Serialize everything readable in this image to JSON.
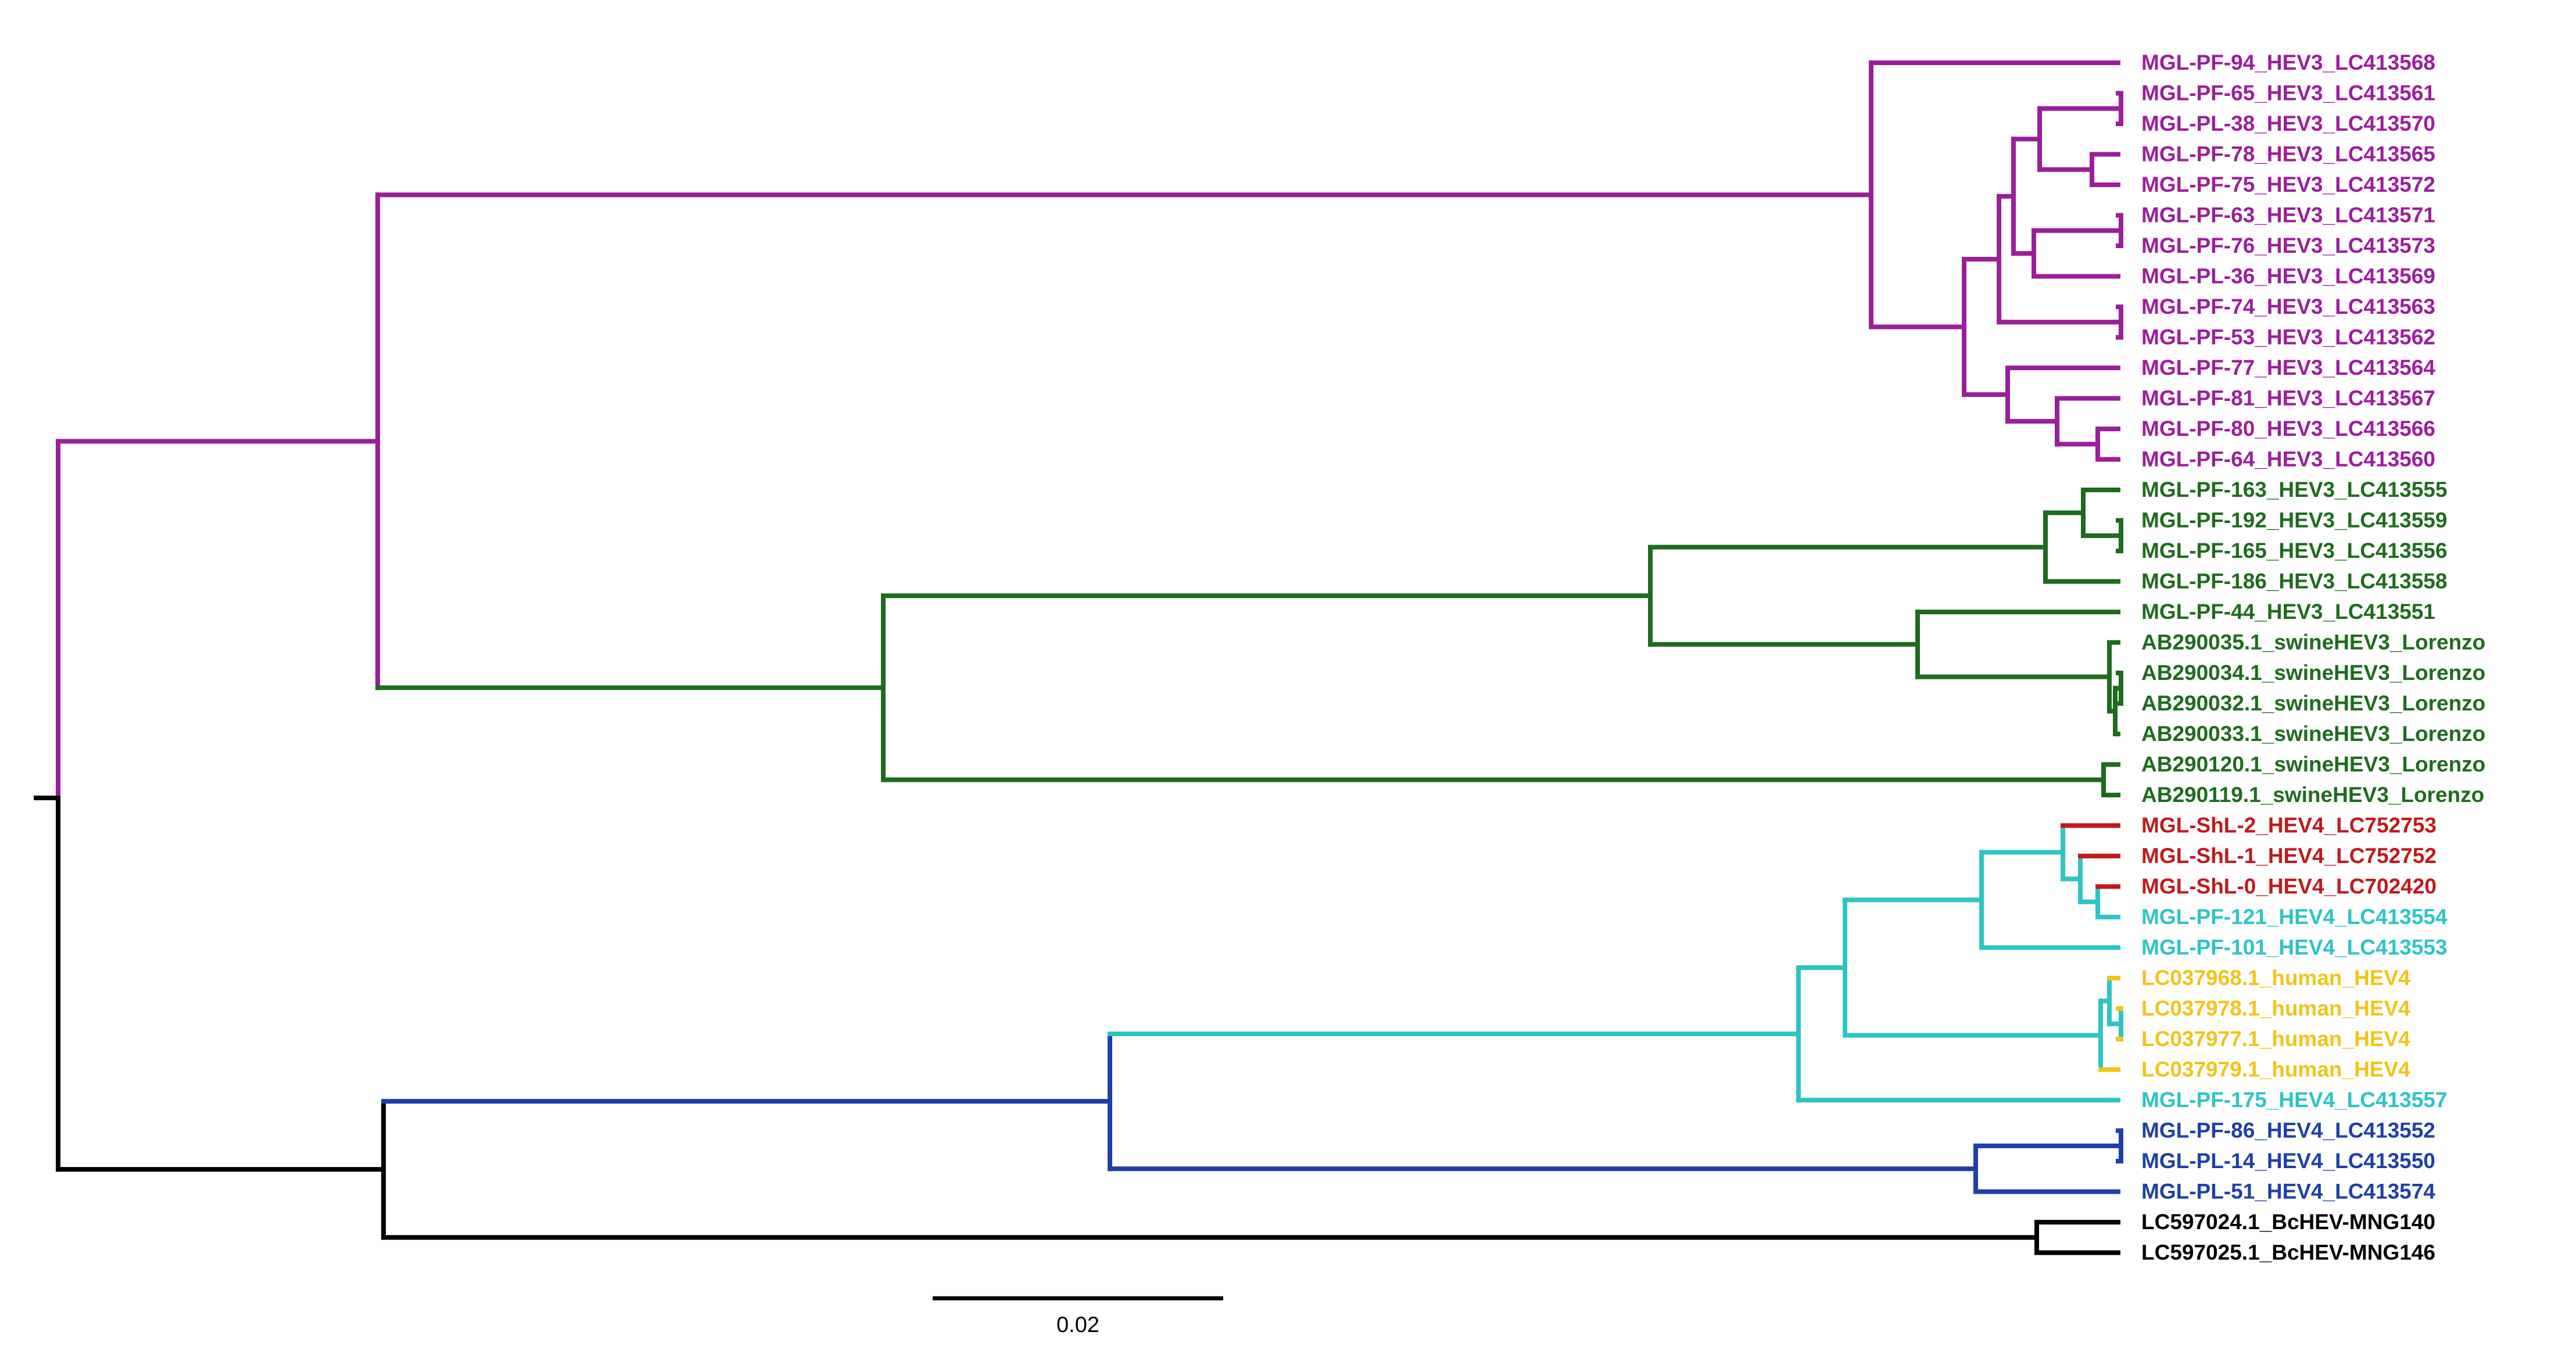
{
  "colors": {
    "hev3_mongolia": "#9b1e9b",
    "hev3_swine": "#1e6b1e",
    "hev4_shl": "#c0191c",
    "hev4_pf": "#2ec4c4",
    "hev4_human": "#f2c419",
    "hev4_blue": "#1f3fa8",
    "bchev": "#000000"
  },
  "tree": {
    "scale_bar": {
      "label": "0.02",
      "length": 0.02
    },
    "leaves": [
      {
        "label": "MGL-PF-94_HEV3_LC413568",
        "color": "#9b1e9b"
      },
      {
        "label": "MGL-PF-65_HEV3_LC413561",
        "color": "#9b1e9b"
      },
      {
        "label": "MGL-PL-38_HEV3_LC413570",
        "color": "#9b1e9b"
      },
      {
        "label": "MGL-PF-78_HEV3_LC413565",
        "color": "#9b1e9b"
      },
      {
        "label": "MGL-PF-75_HEV3_LC413572",
        "color": "#9b1e9b"
      },
      {
        "label": "MGL-PF-63_HEV3_LC413571",
        "color": "#9b1e9b"
      },
      {
        "label": "MGL-PF-76_HEV3_LC413573",
        "color": "#9b1e9b"
      },
      {
        "label": "MGL-PL-36_HEV3_LC413569",
        "color": "#9b1e9b"
      },
      {
        "label": "MGL-PF-74_HEV3_LC413563",
        "color": "#9b1e9b"
      },
      {
        "label": "MGL-PF-53_HEV3_LC413562",
        "color": "#9b1e9b"
      },
      {
        "label": "MGL-PF-77_HEV3_LC413564",
        "color": "#9b1e9b"
      },
      {
        "label": "MGL-PF-81_HEV3_LC413567",
        "color": "#9b1e9b"
      },
      {
        "label": "MGL-PF-80_HEV3_LC413566",
        "color": "#9b1e9b"
      },
      {
        "label": "MGL-PF-64_HEV3_LC413560",
        "color": "#9b1e9b"
      },
      {
        "label": "MGL-PF-163_HEV3_LC413555",
        "color": "#1e6b1e"
      },
      {
        "label": "MGL-PF-192_HEV3_LC413559",
        "color": "#1e6b1e"
      },
      {
        "label": "MGL-PF-165_HEV3_LC413556",
        "color": "#1e6b1e"
      },
      {
        "label": "MGL-PF-186_HEV3_LC413558",
        "color": "#1e6b1e"
      },
      {
        "label": "MGL-PF-44_HEV3_LC413551",
        "color": "#1e6b1e"
      },
      {
        "label": "AB290035.1_swineHEV3_Lorenzo",
        "color": "#1e6b1e"
      },
      {
        "label": "AB290034.1_swineHEV3_Lorenzo",
        "color": "#1e6b1e"
      },
      {
        "label": "AB290032.1_swineHEV3_Lorenzo",
        "color": "#1e6b1e"
      },
      {
        "label": "AB290033.1_swineHEV3_Lorenzo",
        "color": "#1e6b1e"
      },
      {
        "label": "AB290120.1_swineHEV3_Lorenzo",
        "color": "#1e6b1e"
      },
      {
        "label": "AB290119.1_swineHEV3_Lorenzo",
        "color": "#1e6b1e"
      },
      {
        "label": "MGL-ShL-2_HEV4_LC752753",
        "color": "#c0191c"
      },
      {
        "label": "MGL-ShL-1_HEV4_LC752752",
        "color": "#c0191c"
      },
      {
        "label": "MGL-ShL-0_HEV4_LC702420",
        "color": "#c0191c"
      },
      {
        "label": "MGL-PF-121_HEV4_LC413554",
        "color": "#2ec4c4"
      },
      {
        "label": "MGL-PF-101_HEV4_LC413553",
        "color": "#2ec4c4"
      },
      {
        "label": "LC037968.1_human_HEV4",
        "color": "#f2c419"
      },
      {
        "label": "LC037978.1_human_HEV4",
        "color": "#f2c419"
      },
      {
        "label": "LC037977.1_human_HEV4",
        "color": "#f2c419"
      },
      {
        "label": "LC037979.1_human_HEV4",
        "color": "#f2c419"
      },
      {
        "label": "MGL-PF-175_HEV4_LC413557",
        "color": "#2ec4c4"
      },
      {
        "label": "MGL-PF-86_HEV4_LC413552",
        "color": "#1f3fa8"
      },
      {
        "label": "MGL-PL-14_HEV4_LC413550",
        "color": "#1f3fa8"
      },
      {
        "label": "MGL-PL-51_HEV4_LC413574",
        "color": "#1f3fa8"
      },
      {
        "label": "LC597024.1_BcHEV-MNG140",
        "color": "#000000"
      },
      {
        "label": "LC597025.1_BcHEV-MNG146",
        "color": "#000000"
      }
    ]
  }
}
